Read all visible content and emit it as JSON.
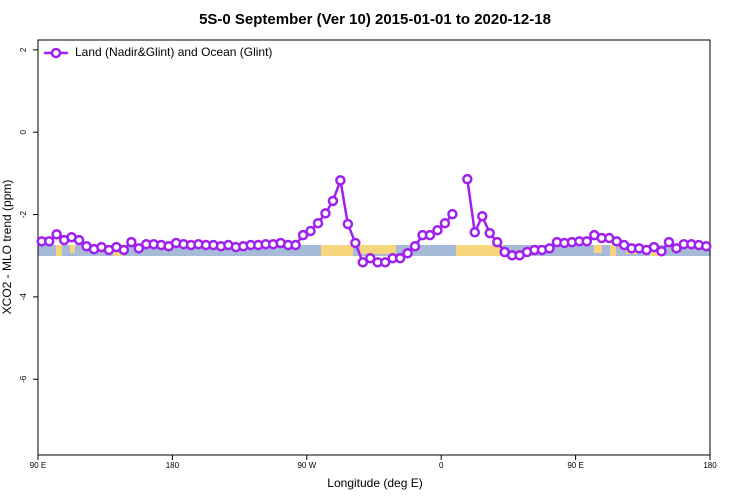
{
  "chart_data": {
    "type": "line",
    "title": "5S-0 September (Ver 10)   2015-01-01 to 2020-12-18",
    "x_label": "Longitude (deg E)",
    "y_label": "XCO2 - MLO trend (ppm)",
    "xlim": [
      90,
      540
    ],
    "xticks": [
      {
        "value": 90,
        "label": "90 E"
      },
      {
        "value": 180,
        "label": "180"
      },
      {
        "value": 270,
        "label": "90 W"
      },
      {
        "value": 360,
        "label": "0"
      },
      {
        "value": 450,
        "label": "90 E"
      },
      {
        "value": 540,
        "label": "180"
      }
    ],
    "ylim": [
      -7.84,
      2.24
    ],
    "yticks": [
      2,
      0,
      -2,
      -4,
      -6
    ],
    "legend": "top-left",
    "series": [
      {
        "name": "Land (Nadir&Glint) and Ocean (Glint)",
        "color": "#a020f0",
        "x": [
          92.5,
          97.5,
          102.5,
          107.5,
          112.5,
          117.5,
          122.5,
          127.5,
          132.5,
          137.5,
          142.5,
          147.5,
          152.5,
          157.5,
          162.5,
          167.5,
          172.5,
          177.5,
          182.5,
          187.5,
          192.5,
          197.5,
          202.5,
          207.5,
          212.5,
          217.5,
          222.5,
          227.5,
          232.5,
          237.5,
          242.5,
          247.5,
          252.5,
          257.5,
          262.5,
          267.5,
          272.5,
          277.5,
          282.5,
          287.5,
          292.5,
          297.5,
          302.5,
          307.5,
          312.5,
          317.5,
          322.5,
          327.5,
          332.5,
          337.5,
          342.5,
          347.5,
          352.5,
          357.5,
          362.5,
          367.5,
          372.5,
          377.5,
          382.5,
          387.5,
          392.5,
          397.5,
          402.5,
          407.5,
          412.5,
          417.5,
          422.5,
          427.5,
          432.5,
          437.5,
          442.5,
          447.5,
          452.5,
          457.5,
          462.5,
          467.5,
          472.5,
          477.5,
          482.5,
          487.5,
          492.5,
          497.5,
          502.5,
          507.5,
          512.5,
          517.5,
          522.5,
          527.5,
          532.5,
          537.5
        ],
        "values": [
          -2.65,
          -2.65,
          -2.48,
          -2.62,
          -2.55,
          -2.62,
          -2.77,
          -2.84,
          -2.79,
          -2.86,
          -2.79,
          -2.86,
          -2.67,
          -2.82,
          -2.72,
          -2.72,
          -2.74,
          -2.77,
          -2.69,
          -2.72,
          -2.74,
          -2.72,
          -2.74,
          -2.74,
          -2.77,
          -2.74,
          -2.79,
          -2.77,
          -2.74,
          -2.74,
          -2.72,
          -2.72,
          -2.69,
          -2.74,
          -2.74,
          -2.5,
          -2.4,
          -2.21,
          -1.97,
          -1.67,
          -1.17,
          -2.23,
          -2.69,
          -3.16,
          -3.06,
          -3.16,
          -3.16,
          -3.06,
          -3.06,
          -2.94,
          -2.77,
          -2.5,
          -2.5,
          -2.38,
          -2.21,
          -1.99,
          null,
          -1.14,
          -2.43,
          -2.04,
          -2.45,
          -2.67,
          -2.91,
          -2.99,
          -2.99,
          -2.91,
          -2.86,
          -2.86,
          -2.82,
          -2.67,
          -2.69,
          -2.67,
          -2.65,
          -2.65,
          -2.5,
          -2.57,
          -2.57,
          -2.65,
          -2.74,
          -2.82,
          -2.82,
          -2.86,
          -2.79,
          -2.89,
          -2.67,
          -2.82,
          -2.72,
          -2.72,
          -2.74,
          -2.77
        ]
      }
    ]
  }
}
